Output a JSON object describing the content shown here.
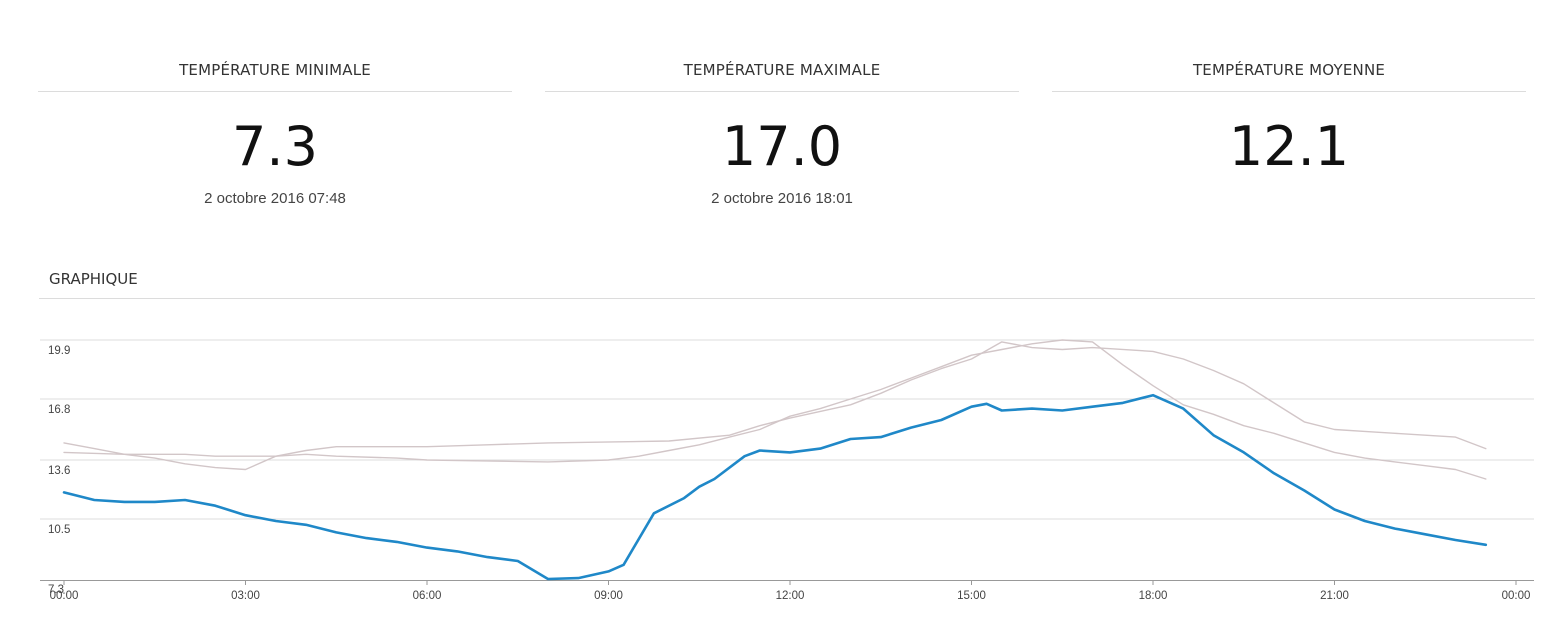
{
  "stats": {
    "min": {
      "title": "TEMPÉRATURE MINIMALE",
      "value": "7.3",
      "date": "2 octobre 2016 07:48"
    },
    "max": {
      "title": "TEMPÉRATURE MAXIMALE",
      "value": "17.0",
      "date": "2 octobre 2016 18:01"
    },
    "avg": {
      "title": "TEMPÉRATURE MOYENNE",
      "value": "12.1"
    }
  },
  "section": {
    "title": "GRAPHIQUE"
  },
  "colors": {
    "main_series": "#1f88c8",
    "comparison_series": "#d2c6c8",
    "grid": "#dddddd",
    "axis": "#999999"
  },
  "chart_data": {
    "type": "line",
    "title": "",
    "xlabel": "",
    "ylabel": "",
    "x_ticks": [
      "00:00",
      "03:00",
      "06:00",
      "09:00",
      "12:00",
      "15:00",
      "18:00",
      "21:00",
      "00:00"
    ],
    "y_ticks": [
      "7.3",
      "10.5",
      "13.6",
      "16.8",
      "19.9"
    ],
    "xlim": [
      "00:00",
      "24:00"
    ],
    "ylim": [
      7.3,
      19.9
    ],
    "grid": true,
    "legend": "none",
    "series": [
      {
        "role": "main",
        "color": "#1f88c8",
        "points": [
          [
            "00:00",
            11.9
          ],
          [
            "00:30",
            11.5
          ],
          [
            "01:00",
            11.4
          ],
          [
            "01:30",
            11.4
          ],
          [
            "02:00",
            11.5
          ],
          [
            "02:30",
            11.2
          ],
          [
            "03:00",
            10.7
          ],
          [
            "03:30",
            10.4
          ],
          [
            "04:00",
            10.2
          ],
          [
            "04:30",
            9.8
          ],
          [
            "05:00",
            9.5
          ],
          [
            "05:30",
            9.3
          ],
          [
            "06:00",
            9.0
          ],
          [
            "06:30",
            8.8
          ],
          [
            "07:00",
            8.5
          ],
          [
            "07:30",
            8.3
          ],
          [
            "08:00",
            7.35
          ],
          [
            "08:30",
            7.4
          ],
          [
            "09:00",
            7.75
          ],
          [
            "09:15",
            8.1
          ],
          [
            "09:45",
            10.8
          ],
          [
            "10:15",
            11.6
          ],
          [
            "10:30",
            12.2
          ],
          [
            "10:45",
            12.6
          ],
          [
            "11:15",
            13.8
          ],
          [
            "11:30",
            14.1
          ],
          [
            "12:00",
            14.0
          ],
          [
            "12:30",
            14.2
          ],
          [
            "13:00",
            14.7
          ],
          [
            "13:30",
            14.8
          ],
          [
            "14:00",
            15.3
          ],
          [
            "14:30",
            15.7
          ],
          [
            "15:00",
            16.4
          ],
          [
            "15:15",
            16.55
          ],
          [
            "15:30",
            16.2
          ],
          [
            "16:00",
            16.3
          ],
          [
            "16:30",
            16.2
          ],
          [
            "17:00",
            16.4
          ],
          [
            "17:30",
            16.6
          ],
          [
            "18:00",
            17.0
          ],
          [
            "18:30",
            16.3
          ],
          [
            "19:00",
            14.9
          ],
          [
            "19:30",
            14.0
          ],
          [
            "20:00",
            12.9
          ],
          [
            "20:30",
            12.0
          ],
          [
            "21:00",
            11.0
          ],
          [
            "21:30",
            10.4
          ],
          [
            "22:00",
            10.0
          ],
          [
            "22:30",
            9.7
          ],
          [
            "23:00",
            9.4
          ],
          [
            "23:30",
            9.15
          ]
        ]
      },
      {
        "role": "comparison",
        "color": "#d2c6c8",
        "points": [
          [
            "00:00",
            14.5
          ],
          [
            "00:30",
            14.2
          ],
          [
            "01:00",
            13.9
          ],
          [
            "01:30",
            13.7
          ],
          [
            "02:00",
            13.4
          ],
          [
            "02:30",
            13.2
          ],
          [
            "03:00",
            13.1
          ],
          [
            "03:30",
            13.8
          ],
          [
            "04:00",
            14.1
          ],
          [
            "04:30",
            14.3
          ],
          [
            "06:00",
            14.3
          ],
          [
            "07:00",
            14.4
          ],
          [
            "08:00",
            14.5
          ],
          [
            "10:00",
            14.6
          ],
          [
            "11:00",
            14.9
          ],
          [
            "11:30",
            15.4
          ],
          [
            "12:00",
            15.8
          ],
          [
            "13:00",
            16.5
          ],
          [
            "13:30",
            17.1
          ],
          [
            "14:00",
            17.8
          ],
          [
            "14:30",
            18.4
          ],
          [
            "15:00",
            18.9
          ],
          [
            "15:30",
            19.8
          ],
          [
            "16:00",
            19.5
          ],
          [
            "16:30",
            19.4
          ],
          [
            "17:00",
            19.5
          ],
          [
            "18:00",
            19.3
          ],
          [
            "18:30",
            18.9
          ],
          [
            "19:00",
            18.3
          ],
          [
            "19:30",
            17.6
          ],
          [
            "20:00",
            16.6
          ],
          [
            "20:30",
            15.6
          ],
          [
            "21:00",
            15.2
          ],
          [
            "21:30",
            15.1
          ],
          [
            "22:00",
            15.0
          ],
          [
            "22:30",
            14.9
          ],
          [
            "23:00",
            14.8
          ],
          [
            "23:30",
            14.2
          ]
        ]
      },
      {
        "role": "comparison",
        "color": "#d2c6c8",
        "points": [
          [
            "00:00",
            14.0
          ],
          [
            "01:00",
            13.9
          ],
          [
            "02:00",
            13.9
          ],
          [
            "02:30",
            13.8
          ],
          [
            "03:30",
            13.8
          ],
          [
            "04:00",
            13.9
          ],
          [
            "04:30",
            13.8
          ],
          [
            "05:30",
            13.7
          ],
          [
            "06:00",
            13.6
          ],
          [
            "08:00",
            13.5
          ],
          [
            "09:00",
            13.6
          ],
          [
            "09:30",
            13.8
          ],
          [
            "10:00",
            14.1
          ],
          [
            "10:30",
            14.4
          ],
          [
            "11:00",
            14.8
          ],
          [
            "11:30",
            15.2
          ],
          [
            "12:00",
            15.9
          ],
          [
            "12:30",
            16.3
          ],
          [
            "13:00",
            16.8
          ],
          [
            "13:30",
            17.3
          ],
          [
            "14:00",
            17.9
          ],
          [
            "14:30",
            18.5
          ],
          [
            "15:00",
            19.1
          ],
          [
            "15:30",
            19.4
          ],
          [
            "16:00",
            19.7
          ],
          [
            "16:30",
            19.9
          ],
          [
            "17:00",
            19.8
          ],
          [
            "17:30",
            18.6
          ],
          [
            "18:00",
            17.5
          ],
          [
            "18:30",
            16.5
          ],
          [
            "19:00",
            16.0
          ],
          [
            "19:30",
            15.4
          ],
          [
            "20:00",
            15.0
          ],
          [
            "20:30",
            14.5
          ],
          [
            "21:00",
            14.0
          ],
          [
            "21:30",
            13.7
          ],
          [
            "22:00",
            13.5
          ],
          [
            "22:30",
            13.3
          ],
          [
            "23:00",
            13.1
          ],
          [
            "23:30",
            12.6
          ]
        ]
      }
    ]
  }
}
